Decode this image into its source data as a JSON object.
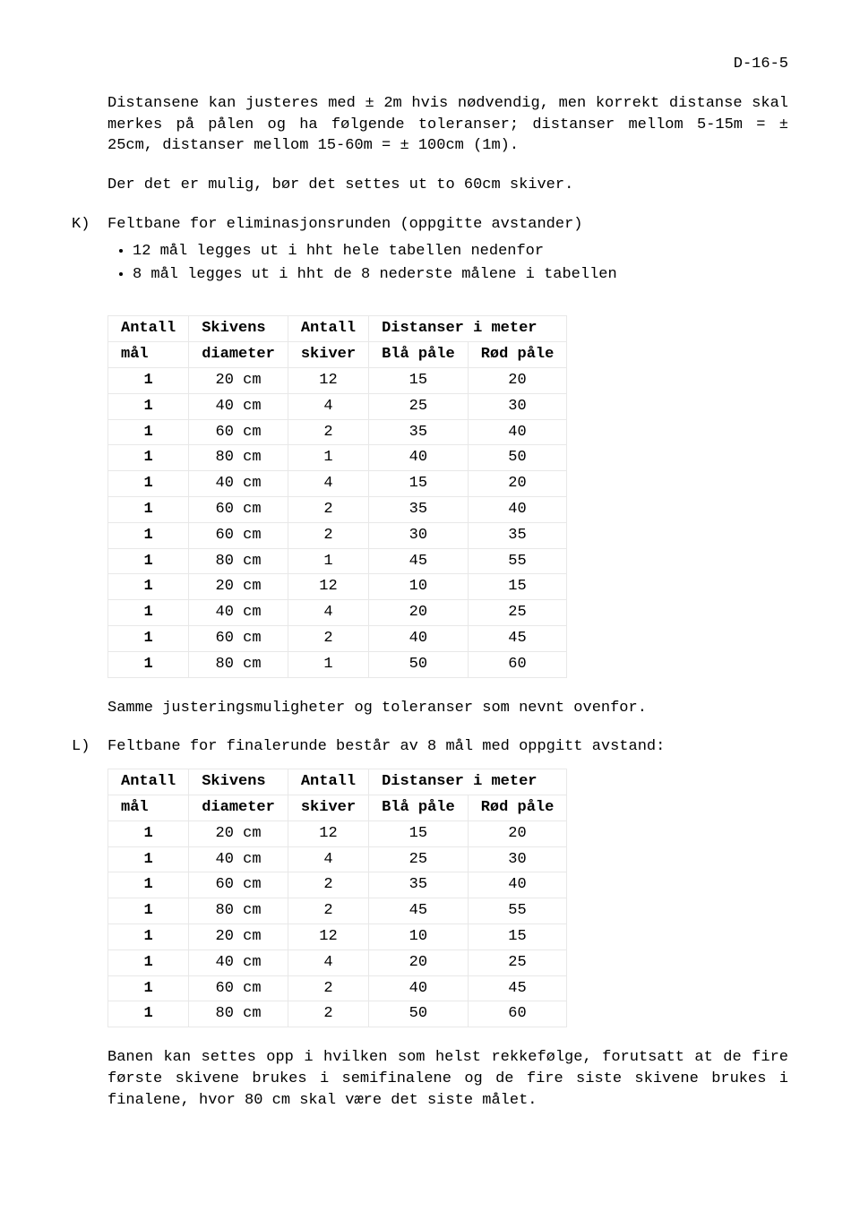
{
  "page_number": "D-16-5",
  "para1": "Distansene kan justeres med ± 2m hvis nødvendig, men korrekt distanse skal merkes på pålen og ha følgende toleranser; distanser mellom 5-15m = ± 25cm, distanser mellom 15-60m = ± 100cm (1m).",
  "para2": "Der det er mulig, bør det settes ut to 60cm skiver.",
  "section_k": {
    "label": "K)",
    "title": "Feltbane for eliminasjonsrunden (oppgitte avstander)",
    "bullets": [
      "12 mål legges ut i hht hele tabellen nedenfor",
      "8 mål legges ut i hht de 8 nederste målene i tabellen"
    ]
  },
  "table_headers": {
    "r1c1": "Antall",
    "r1c2": "Skivens",
    "r1c3": "Antall",
    "r1c4": "Distanser i meter",
    "r2c1": "mål",
    "r2c2": "diameter",
    "r2c3": "skiver",
    "r2c4": "Blå påle",
    "r2c5": "Rød påle"
  },
  "table_k_rows": [
    [
      "1",
      "20 cm",
      "12",
      "15",
      "20"
    ],
    [
      "1",
      "40 cm",
      "4",
      "25",
      "30"
    ],
    [
      "1",
      "60 cm",
      "2",
      "35",
      "40"
    ],
    [
      "1",
      "80 cm",
      "1",
      "40",
      "50"
    ],
    [
      "1",
      "40 cm",
      "4",
      "15",
      "20"
    ],
    [
      "1",
      "60 cm",
      "2",
      "35",
      "40"
    ],
    [
      "1",
      "60 cm",
      "2",
      "30",
      "35"
    ],
    [
      "1",
      "80 cm",
      "1",
      "45",
      "55"
    ],
    [
      "1",
      "20 cm",
      "12",
      "10",
      "15"
    ],
    [
      "1",
      "40 cm",
      "4",
      "20",
      "25"
    ],
    [
      "1",
      "60 cm",
      "2",
      "40",
      "45"
    ],
    [
      "1",
      "80 cm",
      "1",
      "50",
      "60"
    ]
  ],
  "para_k_after": "Samme justeringsmuligheter og toleranser som nevnt ovenfor.",
  "section_l": {
    "label": "L)",
    "title": "Feltbane for finalerunde består av 8 mål med oppgitt avstand:"
  },
  "table_l_rows": [
    [
      "1",
      "20 cm",
      "12",
      "15",
      "20"
    ],
    [
      "1",
      "40 cm",
      "4",
      "25",
      "30"
    ],
    [
      "1",
      "60 cm",
      "2",
      "35",
      "40"
    ],
    [
      "1",
      "80 cm",
      "2",
      "45",
      "55"
    ],
    [
      "1",
      "20 cm",
      "12",
      "10",
      "15"
    ],
    [
      "1",
      "40 cm",
      "4",
      "20",
      "25"
    ],
    [
      "1",
      "60 cm",
      "2",
      "40",
      "45"
    ],
    [
      "1",
      "80 cm",
      "2",
      "50",
      "60"
    ]
  ],
  "para_l_after": "Banen kan settes opp i hvilken som helst rekkefølge, forutsatt at de fire første skivene brukes i semifinalene og de fire siste skivene brukes i finalene, hvor 80 cm skal være det siste målet."
}
